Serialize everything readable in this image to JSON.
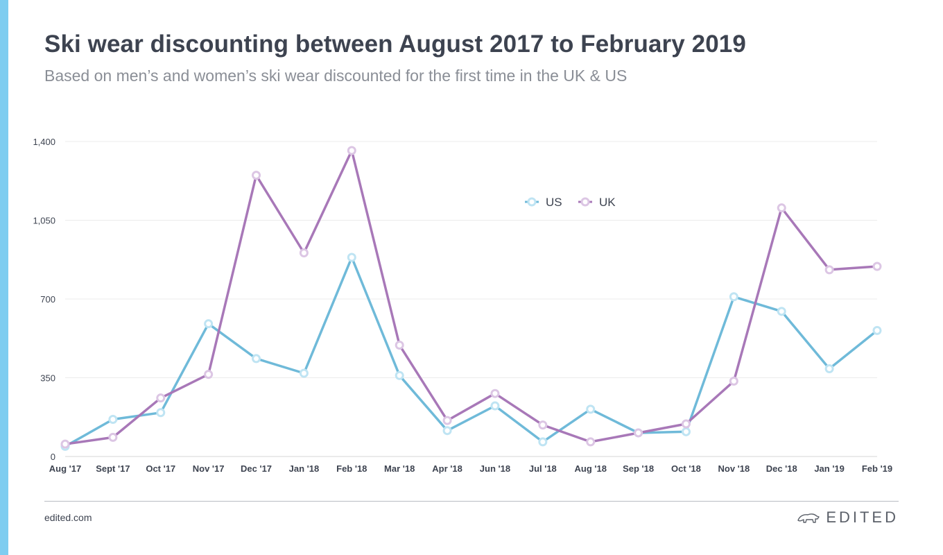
{
  "colors": {
    "accent": "#7ecdf0",
    "us": "#6fbad9",
    "uk": "#a878b8",
    "us_marker": "#bfe4f3",
    "uk_marker": "#dcc6e4",
    "grid": "#ececec",
    "text": "#3d4350"
  },
  "header": {
    "title": "Ski wear discounting between August 2017 to February 2019",
    "subtitle": "Based on men’s and women’s ski wear discounted for the first time in the UK & US"
  },
  "footer": {
    "site": "edited.com",
    "brand": "EDITED",
    "brand_icon": "polar-bear-icon"
  },
  "chart_data": {
    "type": "line",
    "categories": [
      "Aug '17",
      "Sept '17",
      "Oct '17",
      "Nov '17",
      "Dec '17",
      "Jan '18",
      "Feb '18",
      "Mar '18",
      "Apr '18",
      "Jun '18",
      "Jul '18",
      "Aug '18",
      "Sep '18",
      "Oct '18",
      "Nov '18",
      "Dec '18",
      "Jan '19",
      "Feb '19"
    ],
    "series": [
      {
        "name": "US",
        "values": [
          45,
          165,
          195,
          590,
          435,
          370,
          885,
          360,
          115,
          225,
          65,
          210,
          105,
          110,
          710,
          645,
          390,
          560
        ]
      },
      {
        "name": "UK",
        "values": [
          55,
          85,
          260,
          365,
          1250,
          905,
          1360,
          495,
          160,
          280,
          140,
          65,
          105,
          145,
          335,
          1105,
          830,
          845
        ]
      }
    ],
    "yticks": [
      "0",
      "350",
      "700",
      "1,050",
      "1,400"
    ],
    "ylim": [
      0,
      1400
    ],
    "grid": true,
    "legend_position": "top-center"
  }
}
